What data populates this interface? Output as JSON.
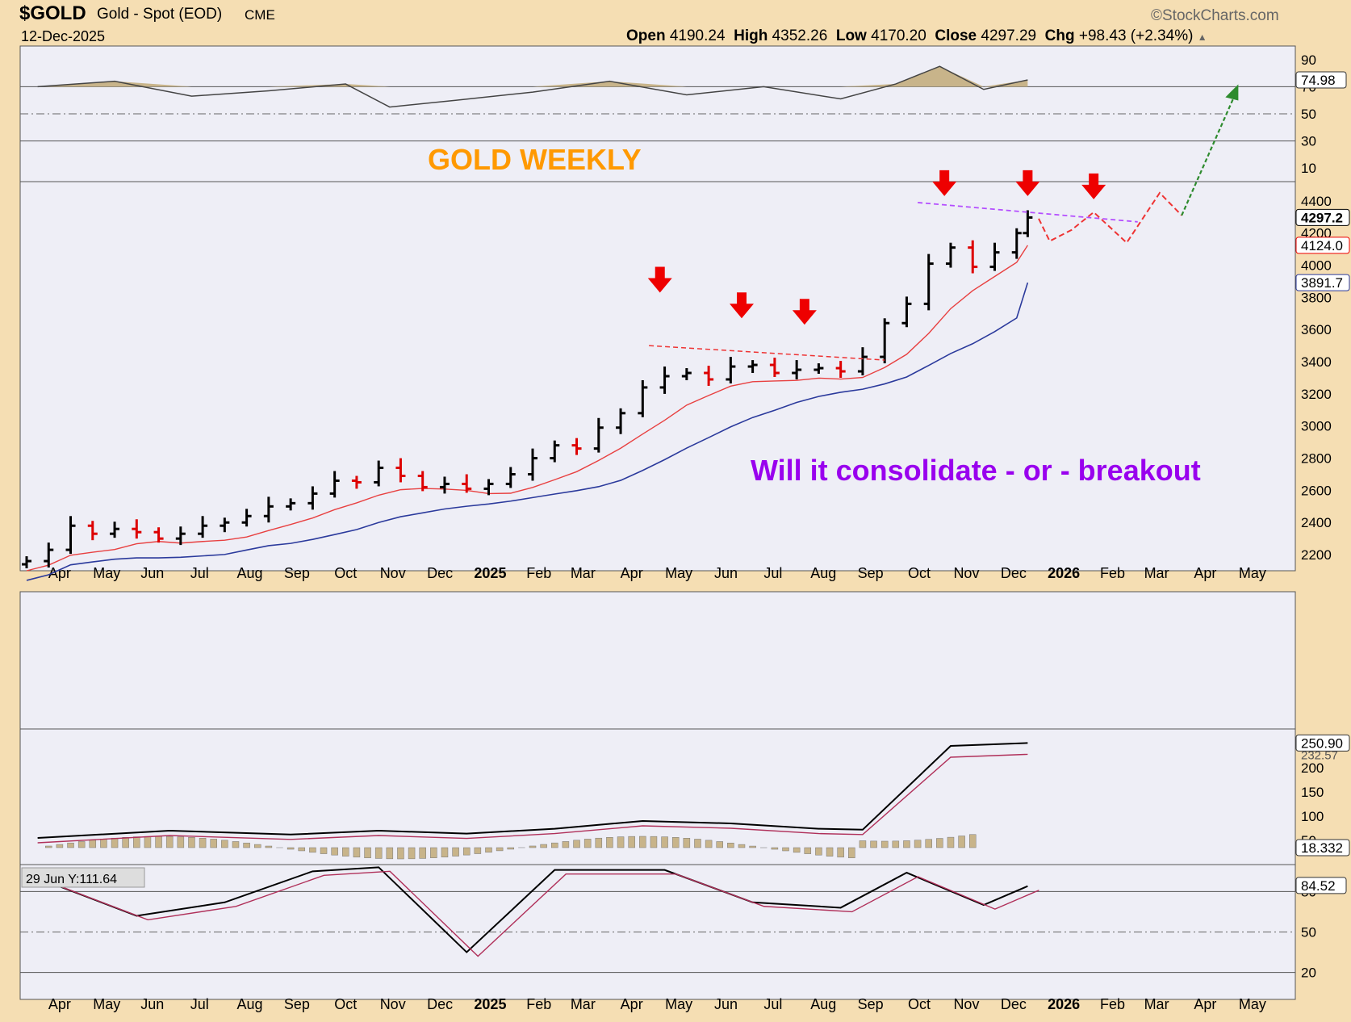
{
  "header": {
    "symbol": "$GOLD",
    "name": "Gold - Spot (EOD)",
    "exchange": "CME",
    "watermark": "©StockCharts.com",
    "date": "12-Dec-2025",
    "open_label": "Open",
    "open": "4190.24",
    "high_label": "High",
    "high": "4352.26",
    "low_label": "Low",
    "low": "4170.20",
    "close_label": "Close",
    "close": "4297.29",
    "chg_label": "Chg",
    "chg": "+98.43 (+2.34%)"
  },
  "annotations": {
    "title": "GOLD WEEKLY",
    "question": "Will it consolidate - or - breakout"
  },
  "date_axis": [
    "Apr",
    "May",
    "Jun",
    "Jul",
    "Aug",
    "Sep",
    "Oct",
    "Nov",
    "Dec",
    "2025",
    "Feb",
    "Mar",
    "Apr",
    "May",
    "Jun",
    "Jul",
    "Aug",
    "Sep",
    "Oct",
    "Nov",
    "Dec",
    "2026",
    "Feb",
    "Mar",
    "Apr",
    "May"
  ],
  "colors": {
    "up_bar": "#000000",
    "down_bar": "#dd0000",
    "ma_fast": "#e84040",
    "ma_slow": "#2b3a9c",
    "arrow": "#ee0000",
    "projection": "#ee3333",
    "breakout_arrow": "#2e8b2e",
    "resistance_recent": "#b44dff",
    "title_color": "#ff9900",
    "question_color": "#9900ee",
    "histogram": "#c8b48a",
    "panel_bg": "#eeeef6"
  },
  "chart_data": [
    {
      "type": "line",
      "panel": "RSI(14)",
      "y_ticks": [
        "90",
        "70",
        "50",
        "30",
        "10"
      ],
      "ylim": [
        0,
        100
      ],
      "last_value": "74.98",
      "x": [
        "2024-03-22",
        "2024-05-10",
        "2024-06-28",
        "2024-08-16",
        "2024-10-04",
        "2024-11-01",
        "2024-12-13",
        "2025-01-31",
        "2025-03-21",
        "2025-05-09",
        "2025-06-27",
        "2025-08-15",
        "2025-09-19",
        "2025-10-17",
        "2025-11-14",
        "2025-12-12"
      ],
      "values": [
        70,
        74,
        63,
        67,
        72,
        55,
        60,
        66,
        74,
        64,
        70,
        61,
        72,
        85,
        68,
        75
      ]
    },
    {
      "type": "bar",
      "panel": "price",
      "subtype": "OHLC weekly",
      "y_ticks": [
        "4400",
        "4200",
        "4000",
        "3800",
        "3600",
        "3400",
        "3200",
        "3000",
        "2800",
        "2600",
        "2400",
        "2200"
      ],
      "ylim": [
        2100,
        4520
      ],
      "last_close": "4297.2",
      "ma_fast_label": "4124.0",
      "ma_slow_label": "3891.7",
      "x_weekly_closes": [
        "2024-03-15",
        "2024-03-29",
        "2024-04-12",
        "2024-04-26",
        "2024-05-10",
        "2024-05-24",
        "2024-06-07",
        "2024-06-21",
        "2024-07-05",
        "2024-07-19",
        "2024-08-02",
        "2024-08-16",
        "2024-08-30",
        "2024-09-13",
        "2024-09-27",
        "2024-10-11",
        "2024-10-25",
        "2024-11-08",
        "2024-11-22",
        "2024-12-06",
        "2024-12-20",
        "2025-01-03",
        "2025-01-17",
        "2025-01-31",
        "2025-02-14",
        "2025-02-28",
        "2025-03-14",
        "2025-03-28",
        "2025-04-11",
        "2025-04-25",
        "2025-05-09",
        "2025-05-23",
        "2025-06-06",
        "2025-06-20",
        "2025-07-04",
        "2025-07-18",
        "2025-08-01",
        "2025-08-15",
        "2025-08-29",
        "2025-09-12",
        "2025-09-26",
        "2025-10-10",
        "2025-10-24",
        "2025-11-07",
        "2025-11-21",
        "2025-12-05",
        "2025-12-12"
      ],
      "closes": [
        2160,
        2230,
        2380,
        2330,
        2360,
        2340,
        2300,
        2330,
        2380,
        2400,
        2440,
        2500,
        2520,
        2580,
        2660,
        2650,
        2740,
        2690,
        2620,
        2640,
        2610,
        2640,
        2700,
        2800,
        2880,
        2860,
        2990,
        3080,
        3240,
        3310,
        3330,
        3290,
        3370,
        3380,
        3330,
        3350,
        3360,
        3340,
        3430,
        3640,
        3760,
        4010,
        4110,
        3990,
        4080,
        4200,
        4297
      ],
      "ma_fast_end": 4124.0,
      "ma_slow_end": 3891.7,
      "resistance_mid_2025": 3450,
      "resistance_recent": 4380,
      "annotated_tops": [
        "2025-04-22",
        "2025-06-13",
        "2025-07-23",
        "2025-10-20",
        "2025-12-12",
        "2026-01-23"
      ]
    },
    {
      "type": "line",
      "panel": "PMO / oscillator",
      "y_ticks": [
        "200",
        "150",
        "100",
        "50"
      ],
      "ylim": [
        0,
        280
      ],
      "last_value": "250.90",
      "signal_label": "232.57",
      "histogram_last": "18.332",
      "x": [
        "2024-03-22",
        "2024-06-14",
        "2024-08-30",
        "2024-10-25",
        "2024-12-20",
        "2025-02-14",
        "2025-04-11",
        "2025-06-06",
        "2025-08-01",
        "2025-08-29",
        "2025-10-24",
        "2025-12-12"
      ],
      "values": [
        55,
        70,
        62,
        70,
        64,
        74,
        90,
        85,
        74,
        72,
        245,
        251
      ]
    },
    {
      "type": "line",
      "panel": "Stochastic",
      "y_ticks": [
        "80",
        "50",
        "20"
      ],
      "ylim": [
        0,
        100
      ],
      "last_value": "84.52",
      "readout": "29 Jun Y:111.64",
      "x": [
        "2024-03-22",
        "2024-05-24",
        "2024-07-19",
        "2024-09-13",
        "2024-10-25",
        "2024-12-20",
        "2025-02-14",
        "2025-04-25",
        "2025-06-20",
        "2025-08-15",
        "2025-09-26",
        "2025-11-14",
        "2025-12-12"
      ],
      "values": [
        90,
        62,
        72,
        95,
        98,
        35,
        96,
        96,
        72,
        68,
        94,
        70,
        84
      ]
    }
  ]
}
